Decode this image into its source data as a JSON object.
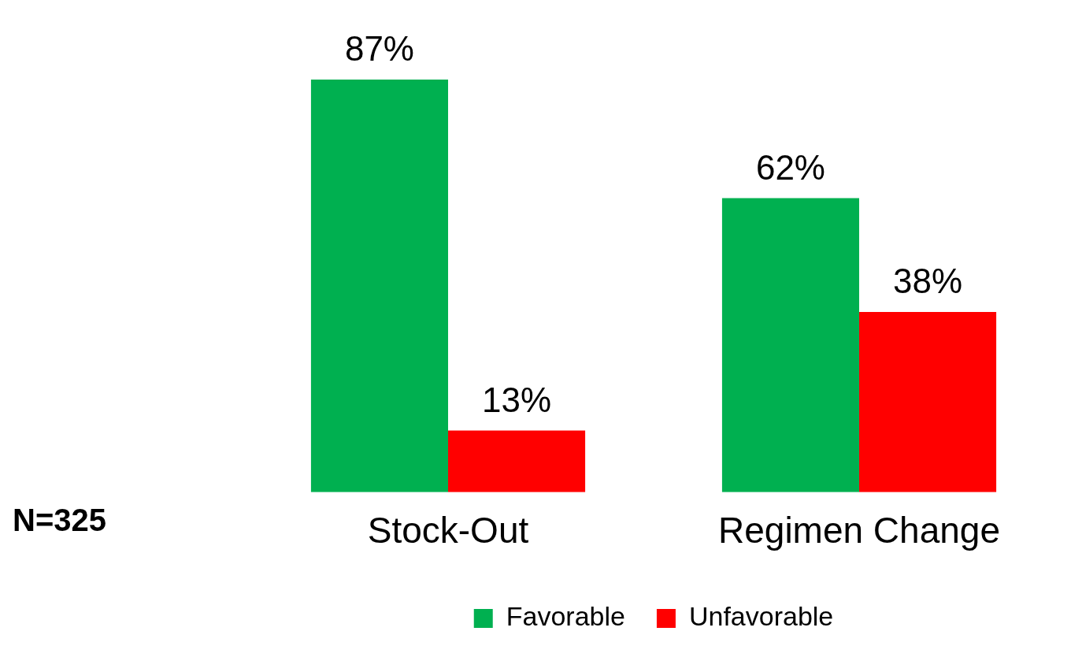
{
  "chart_data": {
    "type": "bar",
    "categories": [
      "Stock-Out",
      "Regimen Change"
    ],
    "series": [
      {
        "name": "Favorable",
        "color": "#00b050",
        "values": [
          87,
          62
        ],
        "value_labels": [
          "87%",
          "62%"
        ]
      },
      {
        "name": "Unfavorable",
        "color": "#ff0000",
        "values": [
          13,
          38
        ],
        "value_labels": [
          "13%",
          "38%"
        ]
      }
    ],
    "legend": "bottom",
    "grid": false,
    "annotations": [
      "N=325"
    ]
  }
}
